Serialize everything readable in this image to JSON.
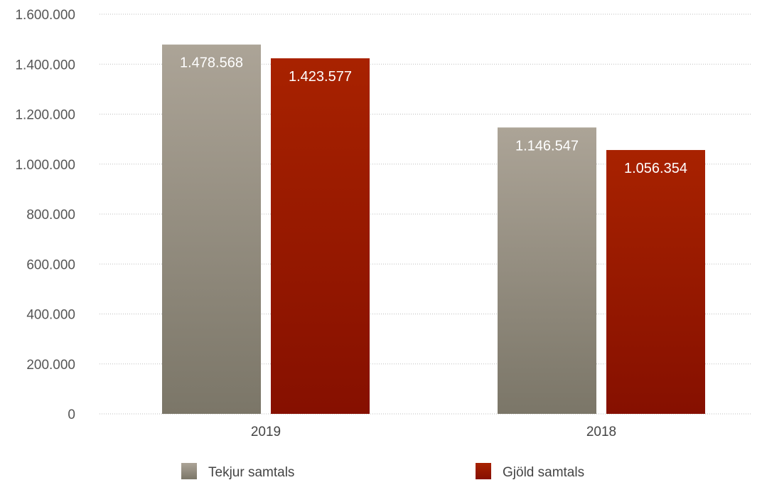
{
  "chart_data": {
    "type": "bar",
    "categories": [
      "2019",
      "2018"
    ],
    "series": [
      {
        "name": "Tekjur samtals",
        "values": [
          1478568,
          1146547
        ],
        "labels": [
          "1.478.568",
          "1.146.547"
        ],
        "color_top": "#aca497",
        "color_bottom": "#7b7668"
      },
      {
        "name": "Gjöld samtals",
        "values": [
          1423577,
          1056354
        ],
        "labels": [
          "1.423.577",
          "1.056.354"
        ],
        "color_top": "#a82200",
        "color_bottom": "#861000"
      }
    ],
    "ylim": [
      0,
      1600000
    ],
    "y_ticks": [
      0,
      200000,
      400000,
      600000,
      800000,
      1000000,
      1200000,
      1400000,
      1600000
    ],
    "y_tick_labels": [
      "0",
      "200.000",
      "400.000",
      "600.000",
      "800.000",
      "1.000.000",
      "1.200.000",
      "1.400.000",
      "1.600.000"
    ],
    "grid": true,
    "legend_position": "bottom",
    "title": "",
    "xlabel": "",
    "ylabel": ""
  }
}
